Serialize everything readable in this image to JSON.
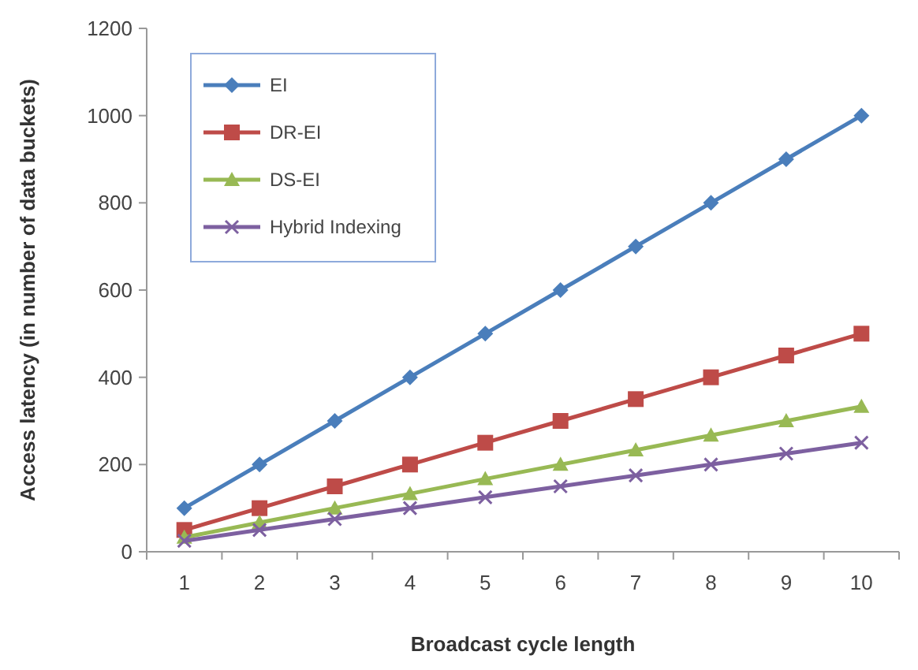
{
  "chart_data": {
    "type": "line",
    "xlabel": "Broadcast cycle length",
    "ylabel": "Access latency (in number of data buckets)",
    "categories": [
      "1",
      "2",
      "3",
      "4",
      "5",
      "6",
      "7",
      "8",
      "9",
      "10"
    ],
    "ylim": [
      0,
      1200
    ],
    "yticks": [
      0,
      200,
      400,
      600,
      800,
      1000,
      1200
    ],
    "grid": false,
    "legend": "top left",
    "series": [
      {
        "name": "EI",
        "color": "#4a7ebb",
        "marker": "diamond",
        "values": [
          100,
          200,
          300,
          400,
          500,
          600,
          700,
          800,
          900,
          1000
        ]
      },
      {
        "name": "DR-EI",
        "color": "#be4b48",
        "marker": "square",
        "values": [
          50,
          100,
          150,
          200,
          250,
          300,
          350,
          400,
          450,
          500
        ]
      },
      {
        "name": "DS-EI",
        "color": "#98b954",
        "marker": "triangle",
        "values": [
          33,
          67,
          100,
          133,
          167,
          200,
          233,
          267,
          300,
          333
        ]
      },
      {
        "name": "Hybrid Indexing",
        "color": "#7d60a0",
        "marker": "cross",
        "values": [
          25,
          50,
          75,
          100,
          125,
          150,
          175,
          200,
          225,
          250
        ]
      }
    ]
  }
}
